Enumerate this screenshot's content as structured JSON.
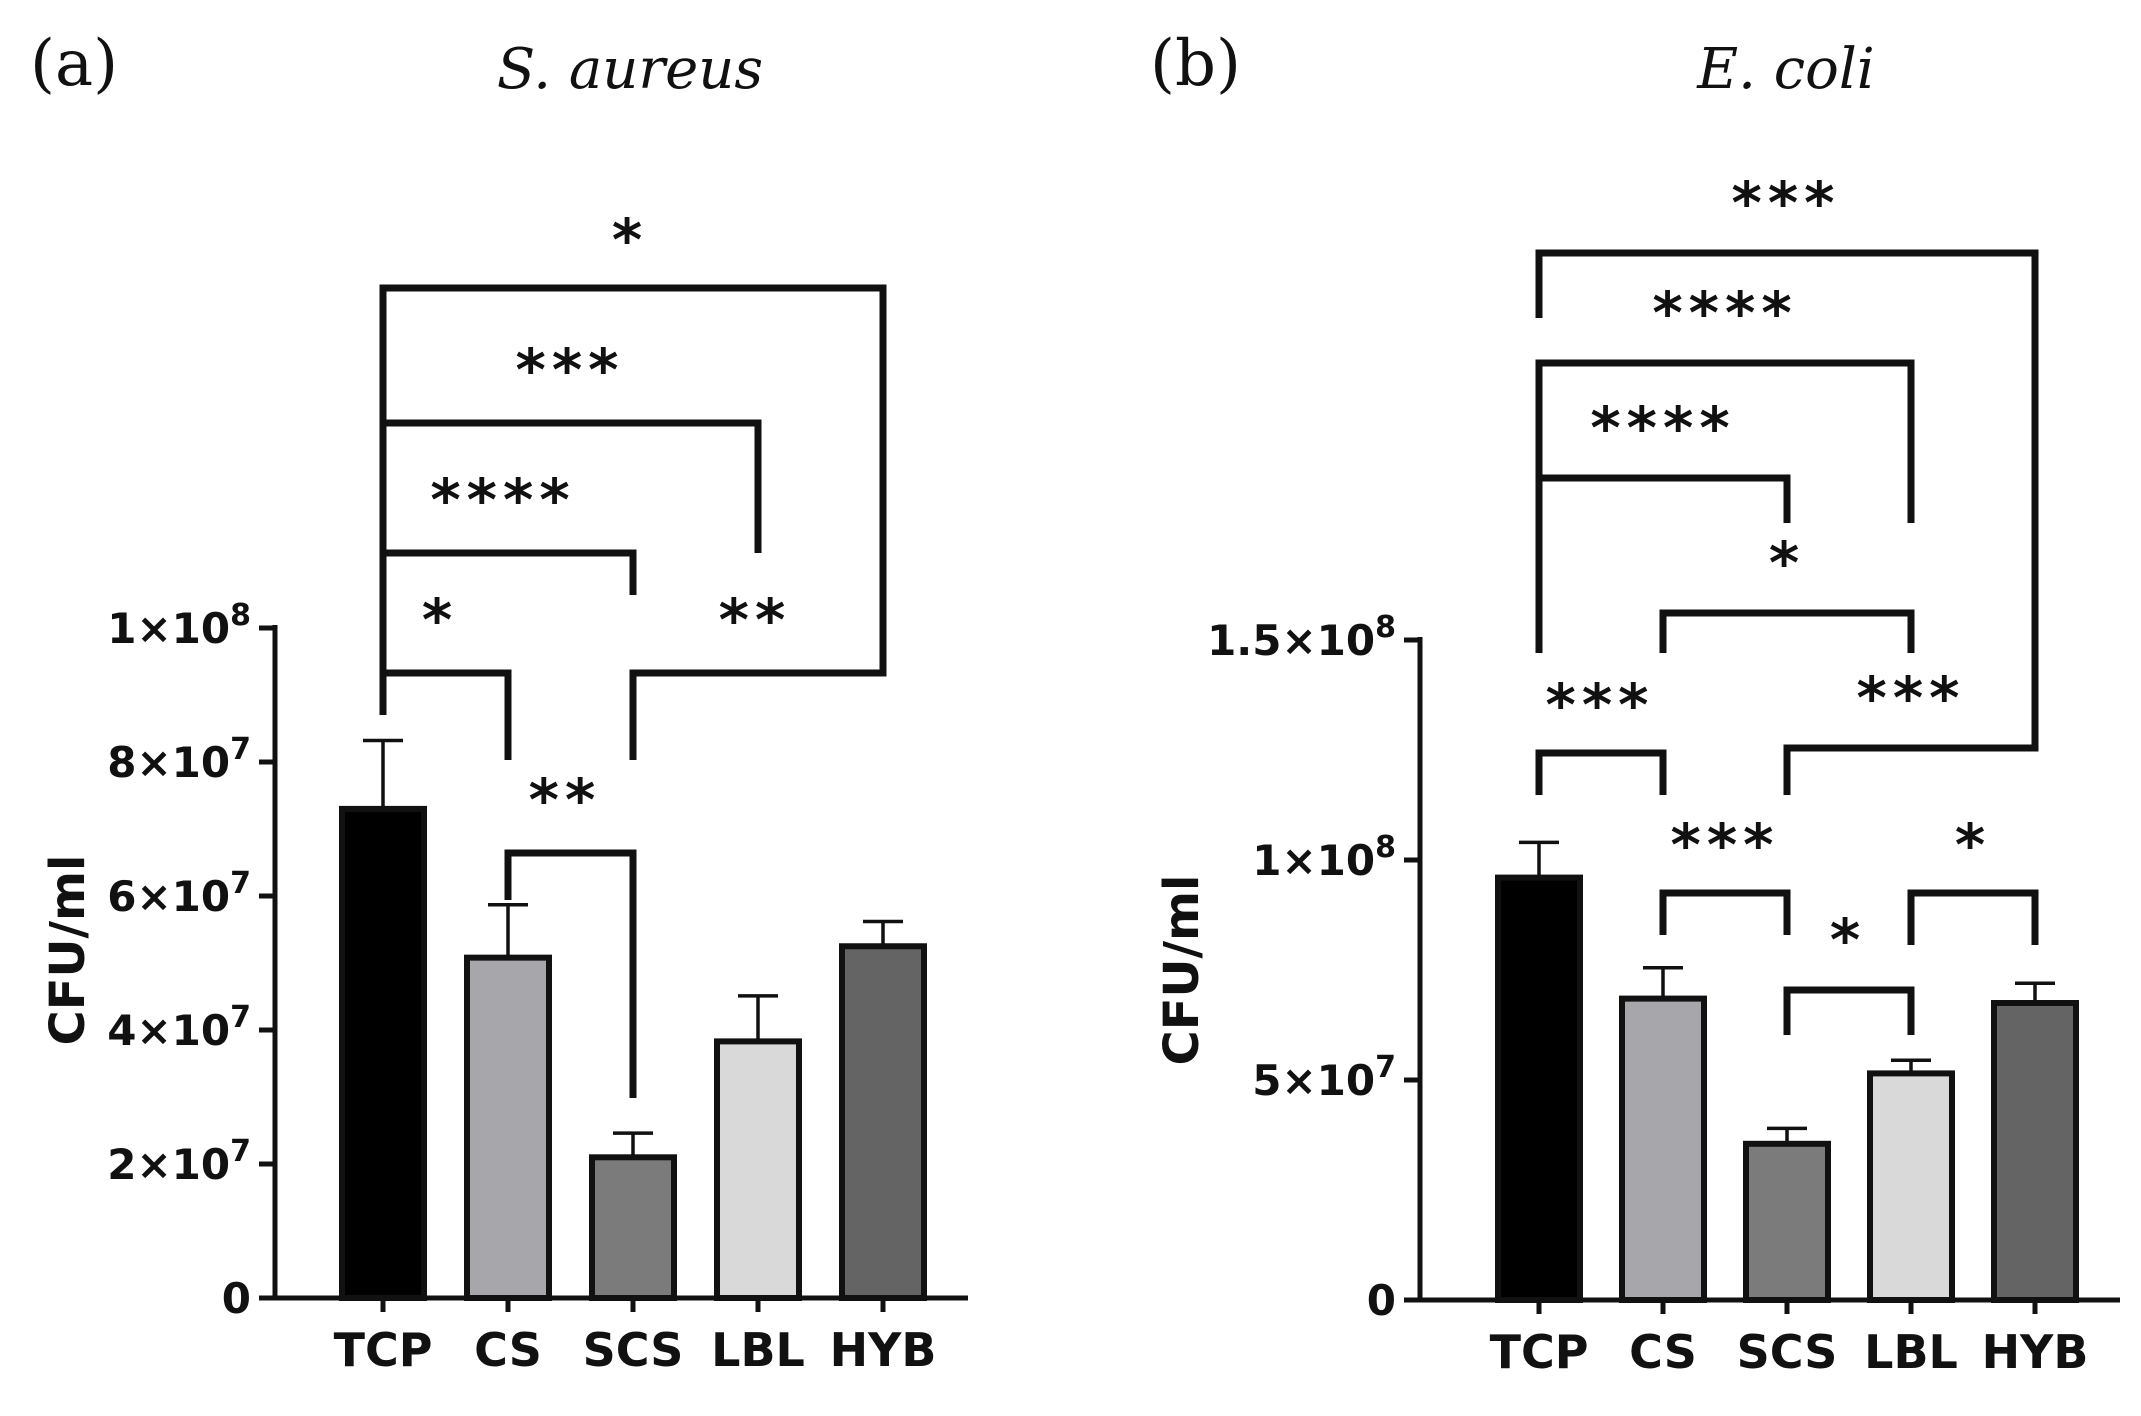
{
  "chart_data": [
    {
      "type": "bar",
      "panel_label": "(a)",
      "title": "S. aureus",
      "ylabel": "CFU/ml",
      "xlabel": "",
      "categories": [
        "TCP",
        "CS",
        "SCS",
        "LBL",
        "HYB"
      ],
      "values": [
        73000000,
        50800000,
        21000000,
        38300000,
        52500000
      ],
      "errors": [
        10200000,
        7900000,
        3600000,
        6800000,
        3700000
      ],
      "bar_colors": [
        "#000000",
        "#a7a6ab",
        "#7b7b7b",
        "#d9d9d9",
        "#646464"
      ],
      "ylim": [
        0,
        100000000
      ],
      "y_ticks": [
        0,
        20000000,
        40000000,
        60000000,
        80000000,
        100000000
      ],
      "y_tick_labels": [
        {
          "base": "0",
          "exp": ""
        },
        {
          "base": "2×10",
          "exp": "7"
        },
        {
          "base": "4×10",
          "exp": "7"
        },
        {
          "base": "6×10",
          "exp": "7"
        },
        {
          "base": "8×10",
          "exp": "7"
        },
        {
          "base": "1×10",
          "exp": "8"
        }
      ],
      "comparisons": [
        {
          "from": "TCP",
          "to": "CS",
          "label": "*"
        },
        {
          "from": "CS",
          "to": "SCS",
          "label": "**"
        },
        {
          "from": "SCS",
          "to": "HYB",
          "label": "**"
        },
        {
          "from": "TCP",
          "to": "SCS",
          "label": "****"
        },
        {
          "from": "TCP",
          "to": "LBL",
          "label": "***"
        },
        {
          "from": "TCP",
          "to": "HYB",
          "label": "*"
        }
      ],
      "grid": false,
      "legend": "none"
    },
    {
      "type": "bar",
      "panel_label": "(b)",
      "title": "E. coli",
      "ylabel": "CFU/ml",
      "xlabel": "",
      "categories": [
        "TCP",
        "CS",
        "SCS",
        "LBL",
        "HYB"
      ],
      "values": [
        96000000,
        68500000,
        35500000,
        51500000,
        67500000
      ],
      "errors": [
        8000000,
        7000000,
        3500000,
        3000000,
        4500000
      ],
      "bar_colors": [
        "#000000",
        "#a7a6ab",
        "#7b7b7b",
        "#d9d9d9",
        "#646464"
      ],
      "ylim": [
        0,
        150000000
      ],
      "y_ticks": [
        0,
        50000000,
        100000000,
        150000000
      ],
      "y_tick_labels": [
        {
          "base": "0",
          "exp": ""
        },
        {
          "base": "5×10",
          "exp": "7"
        },
        {
          "base": "1×10",
          "exp": "8"
        },
        {
          "base": "1.5×10",
          "exp": "8"
        }
      ],
      "comparisons": [
        {
          "from": "TCP",
          "to": "CS",
          "label": "***"
        },
        {
          "from": "CS",
          "to": "SCS",
          "label": "***"
        },
        {
          "from": "SCS",
          "to": "LBL",
          "label": "*"
        },
        {
          "from": "LBL",
          "to": "HYB",
          "label": "*"
        },
        {
          "from": "SCS",
          "to": "HYB",
          "label": "***"
        },
        {
          "from": "CS",
          "to": "LBL",
          "label": "*"
        },
        {
          "from": "TCP",
          "to": "SCS",
          "label": "****"
        },
        {
          "from": "TCP",
          "to": "LBL",
          "label": "****"
        },
        {
          "from": "TCP",
          "to": "HYB",
          "label": "***"
        }
      ],
      "grid": false,
      "legend": "none"
    }
  ]
}
